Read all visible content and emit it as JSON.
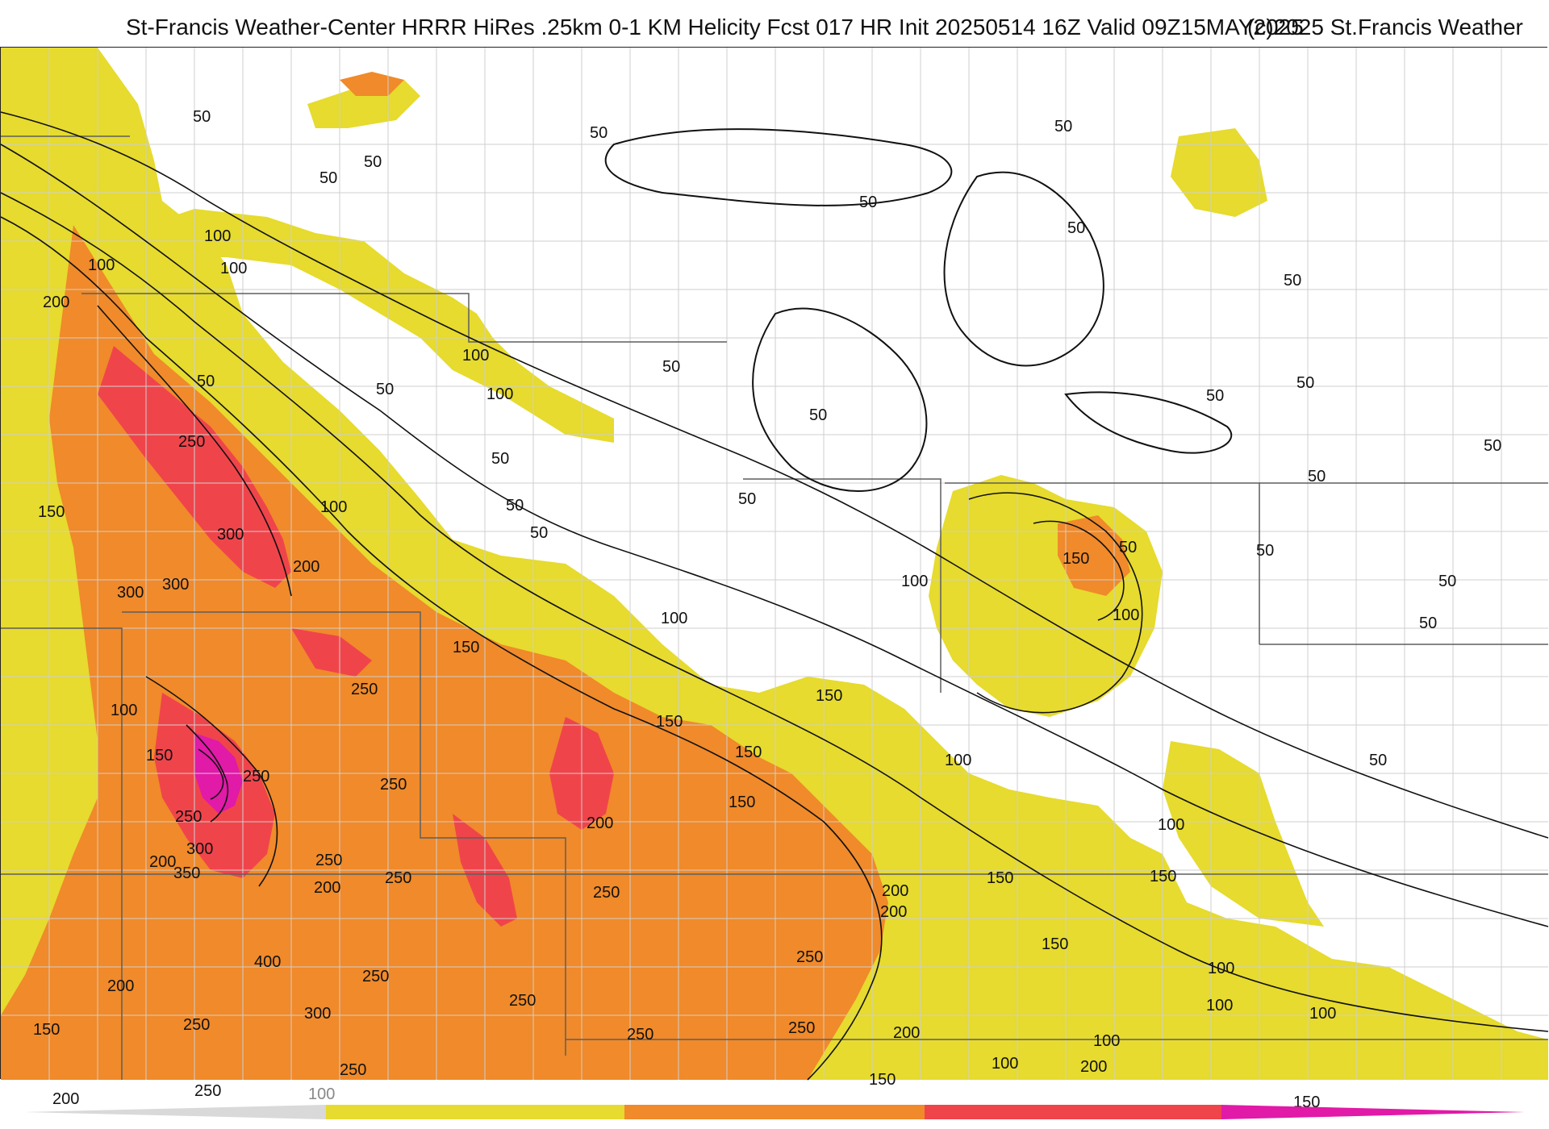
{
  "header": {
    "title": "St-Francis Weather-Center HRRR HiRes .25km 0-1 KM Helicity Fcst 017 HR Init 20250514 16Z  Valid 09Z15MAY2025",
    "copyright": "(c)2025 St.Francis Weather"
  },
  "legend": {
    "tick_label": "100",
    "colors": {
      "band1": "#e6db2e",
      "band2": "#f08a2a",
      "band3": "#f0444b",
      "band4": "#e11aa8",
      "band0": "#d9d9d9"
    }
  },
  "map": {
    "colors": {
      "fill_50": "#e6db2e",
      "fill_200": "#f08a2a",
      "fill_300": "#f0444b",
      "fill_400": "#e11aa8",
      "borders": "#8a8a8a",
      "counties": "#cfcfcf",
      "contours": "#111111"
    },
    "labels": [
      "50",
      "50",
      "50",
      "50",
      "50",
      "50",
      "50",
      "50",
      "50",
      "50",
      "50",
      "50",
      "50",
      "50",
      "50",
      "50",
      "50",
      "50",
      "50",
      "50",
      "50",
      "50",
      "50",
      "50",
      "50",
      "100",
      "100",
      "100",
      "100",
      "100",
      "100",
      "100",
      "100",
      "100",
      "100",
      "100",
      "100",
      "100",
      "100",
      "100",
      "100",
      "100",
      "150",
      "150",
      "150",
      "150",
      "150",
      "150",
      "150",
      "150",
      "150",
      "150",
      "150",
      "150",
      "150",
      "150",
      "200",
      "200",
      "200",
      "200",
      "200",
      "200",
      "200",
      "200",
      "200",
      "200",
      "200",
      "250",
      "250",
      "250",
      "250",
      "250",
      "250",
      "250",
      "250",
      "250",
      "250",
      "250",
      "250",
      "250",
      "250",
      "250",
      "250",
      "300",
      "300",
      "300",
      "300",
      "300",
      "350",
      "400"
    ]
  }
}
